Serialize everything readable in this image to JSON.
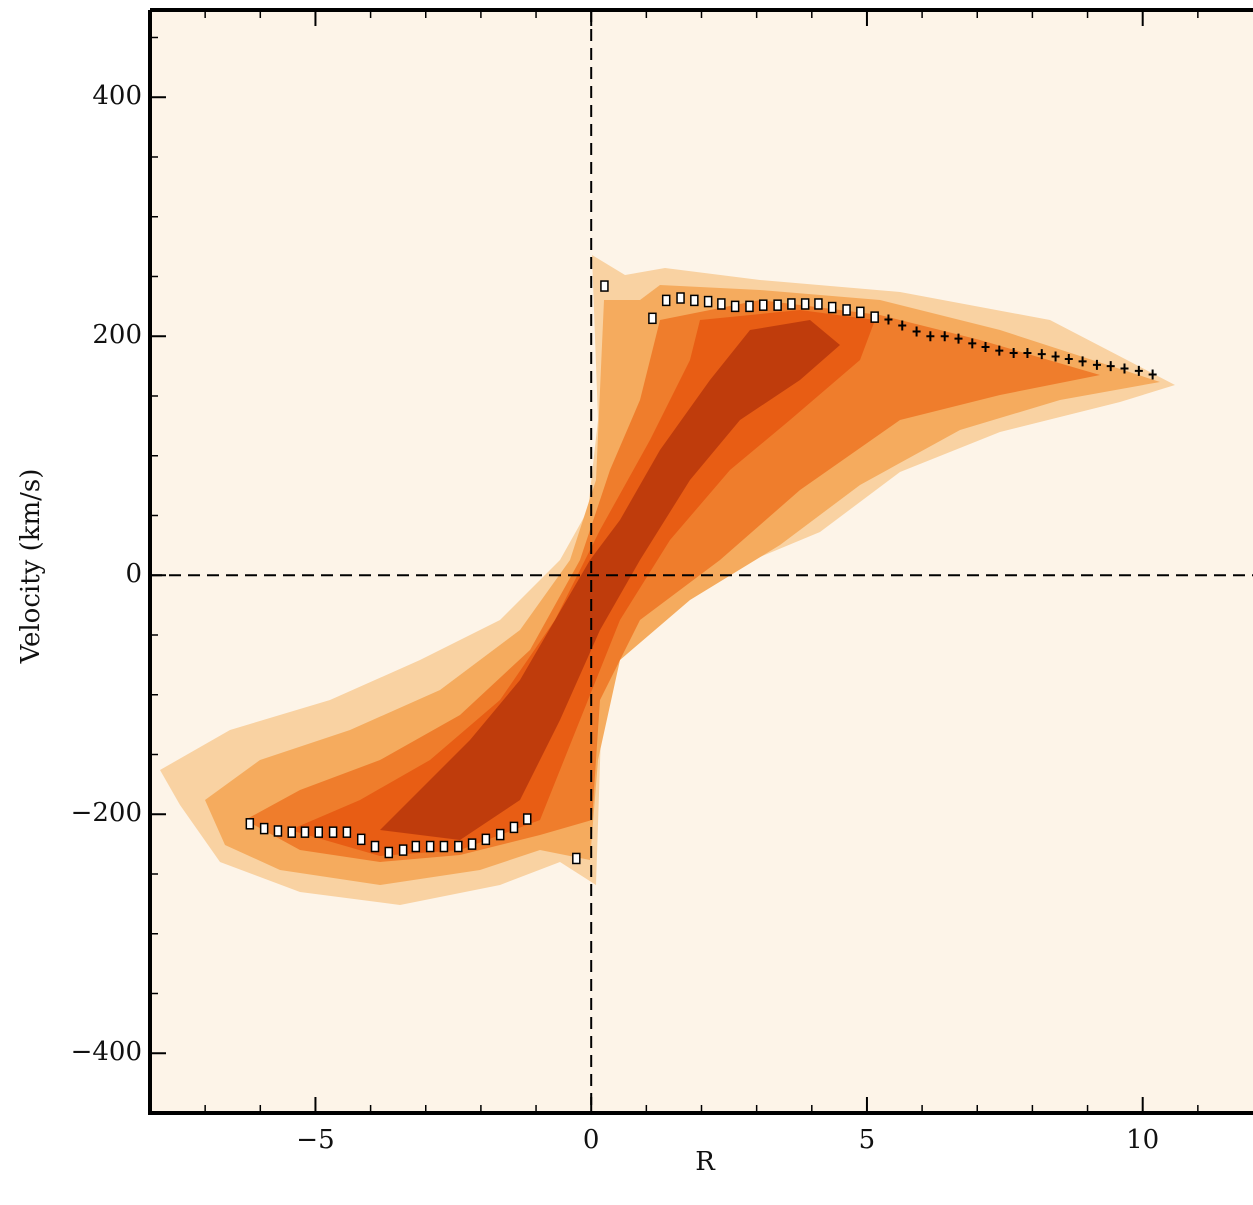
{
  "chart_data": {
    "type": "scatter",
    "xlabel": "R",
    "ylabel": "Velocity (km/s)",
    "xlim": [
      -8,
      12
    ],
    "ylim": [
      -450,
      473
    ],
    "xticks": [
      {
        "value": -5,
        "label": "−5"
      },
      0,
      5,
      10
    ],
    "yticks": [
      {
        "value": -400,
        "label": "−400"
      },
      {
        "value": -200,
        "label": "−200"
      },
      0,
      200,
      400
    ],
    "xminor": [
      -7,
      -6,
      -4,
      -3,
      -2,
      -1,
      1,
      2,
      3,
      4,
      6,
      7,
      8,
      9,
      11
    ],
    "yminor": [
      -450,
      -350,
      -300,
      -250,
      -150,
      -100,
      -50,
      50,
      100,
      150,
      250,
      300,
      350,
      450
    ],
    "ref_x": 0,
    "ref_y": 0,
    "series": [
      {
        "marker": "square",
        "color": "#ffffff",
        "x": [
          -6.19,
          -5.93,
          -5.68,
          -5.43,
          -5.19,
          -4.94,
          -4.68,
          -4.43,
          -4.17,
          -3.92,
          -3.67,
          -3.41,
          -3.18,
          -2.92,
          -2.67,
          -2.41,
          -2.16,
          -1.91,
          -1.65,
          -1.4,
          -1.16,
          -0.27,
          0.24,
          1.11,
          1.36,
          1.62,
          1.87,
          2.12,
          2.36,
          2.61,
          2.87,
          3.12,
          3.38,
          3.63,
          3.88,
          4.12,
          4.37,
          4.63,
          4.88,
          5.14
        ],
        "values": [
          -208,
          -212,
          -214,
          -215,
          -215,
          -215,
          -215,
          -215,
          -221,
          -227,
          -232,
          -230,
          -227,
          -227,
          -227,
          -227,
          -225,
          -221,
          -217,
          -211,
          -204,
          -237,
          242,
          215,
          230,
          232,
          230,
          229,
          227,
          225,
          225,
          226,
          226,
          227,
          227,
          227,
          224,
          222,
          220,
          216
        ]
      },
      {
        "marker": "plus",
        "color": "#000000",
        "x": [
          5.39,
          5.64,
          5.9,
          6.15,
          6.41,
          6.66,
          6.91,
          7.15,
          7.4,
          7.66,
          7.91,
          8.17,
          8.42,
          8.66,
          8.91,
          9.17,
          9.42,
          9.67,
          9.93,
          10.18
        ],
        "values": [
          214,
          209,
          204,
          200,
          200,
          198,
          194,
          191,
          188,
          186,
          186,
          185,
          183,
          181,
          179,
          176,
          175,
          173,
          171,
          168
        ]
      }
    ]
  }
}
